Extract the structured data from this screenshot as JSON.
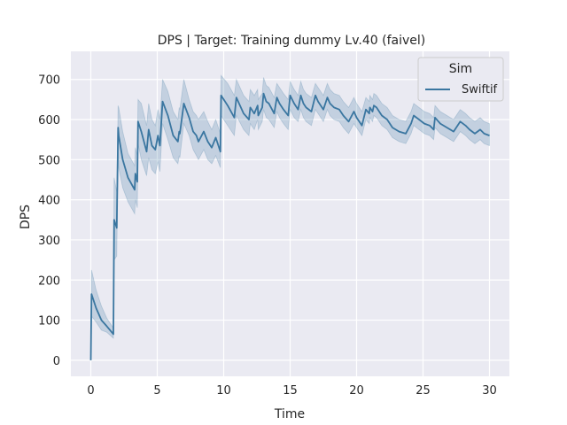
{
  "chart_data": {
    "type": "line",
    "title": "DPS | Target: Training dummy Lv.40 (faivel)",
    "xlabel": "Time",
    "ylabel": "DPS",
    "xlim": [
      -1.5,
      31.5
    ],
    "ylim": [
      -40,
      770
    ],
    "xticks": [
      0,
      5,
      10,
      15,
      20,
      25,
      30
    ],
    "yticks": [
      0,
      100,
      200,
      300,
      400,
      500,
      600,
      700
    ],
    "grid": true,
    "legend": {
      "title": "Sim",
      "placement": "top-right",
      "entries": [
        "Swiftif"
      ]
    },
    "series": [
      {
        "name": "Swiftif",
        "color": "#3a76a0",
        "band_color": "#3a76a0",
        "x": [
          0,
          0.05,
          0.4,
          0.8,
          1.2,
          1.7,
          1.75,
          1.95,
          2.05,
          2.1,
          2.4,
          2.8,
          3.3,
          3.35,
          3.5,
          3.55,
          3.8,
          4.2,
          4.35,
          4.6,
          4.85,
          5.05,
          5.2,
          5.4,
          5.8,
          6.2,
          6.55,
          6.65,
          6.7,
          7.0,
          7.4,
          7.7,
          7.95,
          8.1,
          8.5,
          8.8,
          9.1,
          9.4,
          9.75,
          9.8,
          10.3,
          10.8,
          10.95,
          11.5,
          11.9,
          12.0,
          12.3,
          12.55,
          12.6,
          12.9,
          13.0,
          13.2,
          13.4,
          13.8,
          14.0,
          14.2,
          14.5,
          14.85,
          15.0,
          15.3,
          15.6,
          15.8,
          16.0,
          16.2,
          16.6,
          16.9,
          17.1,
          17.5,
          17.8,
          18.0,
          18.3,
          18.7,
          19.0,
          19.4,
          19.8,
          20.0,
          20.4,
          20.7,
          20.95,
          21.0,
          21.2,
          21.3,
          21.5,
          21.9,
          22.3,
          22.7,
          23.2,
          23.7,
          24.1,
          24.3,
          24.7,
          25.1,
          25.5,
          25.8,
          25.9,
          26.3,
          26.8,
          27.3,
          27.8,
          28.2,
          28.5,
          28.9,
          29.3,
          29.6,
          30.0
        ],
        "values": [
          0,
          165,
          130,
          100,
          85,
          65,
          350,
          330,
          580,
          560,
          500,
          455,
          425,
          465,
          445,
          595,
          570,
          520,
          575,
          535,
          525,
          560,
          535,
          645,
          610,
          560,
          545,
          570,
          565,
          640,
          605,
          570,
          560,
          545,
          570,
          545,
          530,
          555,
          520,
          660,
          635,
          605,
          655,
          615,
          600,
          630,
          615,
          635,
          610,
          630,
          665,
          645,
          640,
          615,
          655,
          640,
          625,
          610,
          660,
          640,
          625,
          660,
          640,
          630,
          620,
          660,
          645,
          625,
          655,
          640,
          630,
          625,
          610,
          595,
          620,
          605,
          585,
          625,
          615,
          630,
          620,
          635,
          630,
          610,
          600,
          580,
          570,
          565,
          590,
          610,
          600,
          590,
          585,
          575,
          605,
          590,
          580,
          570,
          595,
          585,
          575,
          565,
          575,
          565,
          560
        ],
        "ci_lower": [
          0,
          110,
          95,
          75,
          70,
          55,
          250,
          260,
          520,
          480,
          430,
          395,
          365,
          400,
          380,
          540,
          500,
          460,
          505,
          475,
          465,
          495,
          470,
          590,
          550,
          505,
          490,
          510,
          505,
          590,
          560,
          525,
          510,
          500,
          525,
          500,
          490,
          510,
          480,
          610,
          585,
          560,
          610,
          575,
          560,
          590,
          575,
          600,
          575,
          595,
          625,
          605,
          600,
          580,
          620,
          605,
          590,
          575,
          625,
          605,
          595,
          625,
          605,
          595,
          585,
          625,
          615,
          595,
          625,
          610,
          600,
          595,
          580,
          565,
          590,
          580,
          560,
          600,
          590,
          605,
          595,
          610,
          605,
          585,
          575,
          555,
          545,
          540,
          565,
          585,
          575,
          565,
          560,
          550,
          580,
          565,
          555,
          545,
          570,
          560,
          550,
          540,
          550,
          540,
          535
        ],
        "ci_upper": [
          0,
          225,
          175,
          135,
          105,
          80,
          455,
          420,
          635,
          630,
          570,
          515,
          485,
          530,
          510,
          650,
          640,
          585,
          640,
          600,
          585,
          625,
          600,
          700,
          670,
          620,
          600,
          630,
          625,
          700,
          650,
          620,
          610,
          600,
          620,
          595,
          575,
          600,
          565,
          710,
          690,
          660,
          700,
          660,
          645,
          675,
          660,
          675,
          650,
          665,
          705,
          685,
          680,
          655,
          690,
          680,
          665,
          650,
          695,
          675,
          660,
          695,
          675,
          665,
          655,
          690,
          680,
          660,
          690,
          675,
          665,
          660,
          645,
          630,
          655,
          640,
          620,
          655,
          645,
          660,
          650,
          665,
          660,
          640,
          630,
          610,
          600,
          595,
          620,
          640,
          630,
          620,
          615,
          605,
          635,
          620,
          610,
          600,
          625,
          615,
          605,
          595,
          605,
          595,
          590
        ]
      }
    ]
  }
}
